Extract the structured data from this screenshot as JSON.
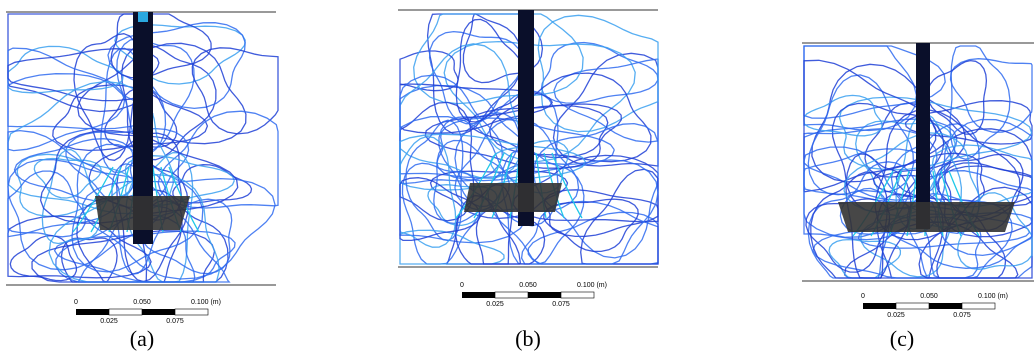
{
  "panels": [
    {
      "caption": "(a)",
      "scale_bar": {
        "top_labels": [
          "0",
          "0.050",
          "0.100 (m)"
        ],
        "bottom_labels": [
          "0.025",
          "0.075"
        ]
      }
    },
    {
      "caption": "(b)",
      "scale_bar": {
        "top_labels": [
          "0",
          "0.050",
          "0.100 (m)"
        ],
        "bottom_labels": [
          "0.025",
          "0.075"
        ]
      }
    },
    {
      "caption": "(c)",
      "scale_bar": {
        "top_labels": [
          "0",
          "0.050",
          "0.100 (m)"
        ],
        "bottom_labels": [
          "0.025",
          "0.075"
        ]
      }
    }
  ],
  "colors": {
    "streamline_dark": "#1e3fd6",
    "streamline_mid": "#2f6bf0",
    "streamline_light": "#3aa0f0",
    "streamline_cyan": "#1fc8e8",
    "shaft": "#0a0f2a",
    "impeller": "#333333"
  }
}
